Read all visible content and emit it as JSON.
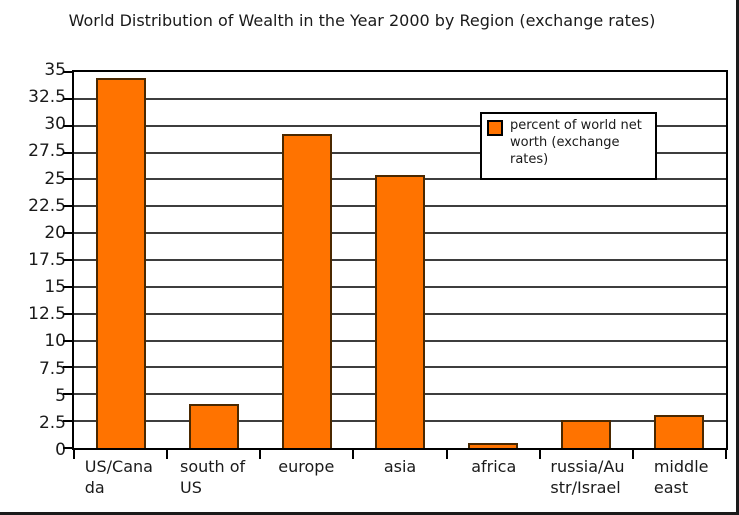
{
  "title": "World Distribution of Wealth in the Year 2000 by Region (exchange rates)",
  "legend": {
    "label": "percent of world net\nworth (exchange\nrates)",
    "swatch_color": "#ff7300"
  },
  "colors": {
    "background": "#ffffff",
    "grid": "#3d3d3d",
    "axis": "#000000",
    "text": "#1a1a1a",
    "bar_fill": "#ff7300",
    "bar_border": "#4a2800",
    "frame_border": "#1a1a1a"
  },
  "chart_data": {
    "type": "bar",
    "title": "World Distribution of Wealth in the Year 2000 by Region (exchange rates)",
    "categories": [
      "US/Canada",
      "south of US",
      "europe",
      "asia",
      "africa",
      "russia/Austr/Israel",
      "middle east"
    ],
    "category_tick_labels": [
      "US/Cana\nda",
      "south of\nUS",
      "europe",
      "asia",
      "africa",
      "russia/Au\nstr/Israel",
      "middle\neast"
    ],
    "series": [
      {
        "name": "percent of world net worth (exchange rates)",
        "values": [
          34.4,
          4.1,
          29.2,
          25.4,
          0.5,
          2.6,
          3.1
        ],
        "color": "#ff7300"
      }
    ],
    "xlabel": "",
    "ylabel": "",
    "ylim": [
      0,
      35
    ],
    "ytick_step": 2.5,
    "yticks": [
      0,
      2.5,
      5,
      7.5,
      10,
      12.5,
      15,
      17.5,
      20,
      22.5,
      25,
      27.5,
      30,
      32.5,
      35
    ],
    "grid": true,
    "legend_position": "inside upper right"
  }
}
